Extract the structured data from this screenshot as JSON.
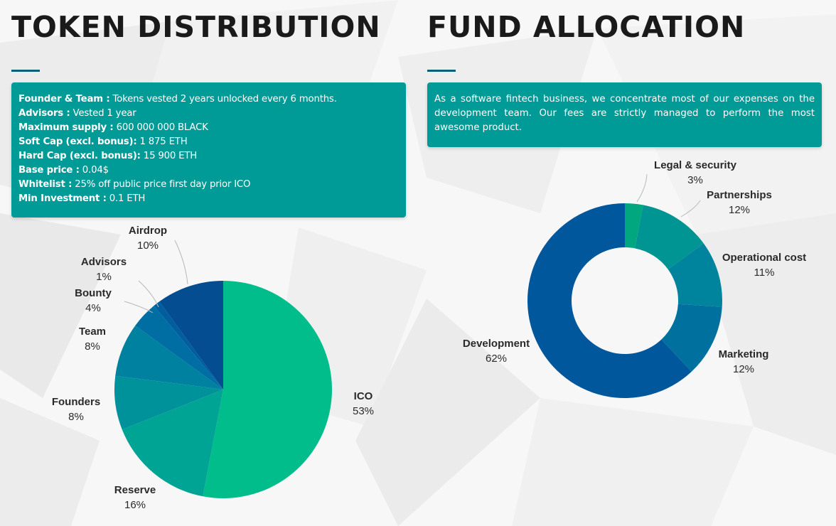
{
  "token_distribution": {
    "title": "TOKEN DISTRIBUTION",
    "info_lines": [
      {
        "key": "Founder & Team :",
        "value": " Tokens vested 2 years unlocked every 6 months."
      },
      {
        "key": "Advisors :",
        "value": " Vested 1 year"
      },
      {
        "key": "Maximum supply :",
        "value": " 600 000 000 BLACK"
      },
      {
        "key": "Soft Cap (excl. bonus):",
        "value": " 1 875 ETH"
      },
      {
        "key": "Hard Cap (excl. bonus):",
        "value": " 15 900 ETH"
      },
      {
        "key": "Base price :",
        "value": " 0.04$"
      },
      {
        "key": "Whitelist :",
        "value": " 25% off public price first day prior ICO"
      },
      {
        "key": "Min Investment :",
        "value": " 0.1 ETH"
      }
    ]
  },
  "fund_allocation": {
    "title": "FUND ALLOCATION",
    "description": "As a software fintech business, we concentrate most of our expenses on the development team. Our fees are strictly managed to perform the most awesome product."
  },
  "colors": {
    "teal_box": "#009a97",
    "underline": "#0b5f76"
  },
  "chart_data": [
    {
      "type": "pie",
      "title": "",
      "slices": [
        {
          "label": "ICO",
          "value": 53,
          "pct_label": "53%",
          "color": "#00bd8b"
        },
        {
          "label": "Reserve",
          "value": 16,
          "pct_label": "16%",
          "color": "#00a494"
        },
        {
          "label": "Founders",
          "value": 8,
          "pct_label": "8%",
          "color": "#00929a"
        },
        {
          "label": "Team",
          "value": 8,
          "pct_label": "8%",
          "color": "#0081a0"
        },
        {
          "label": "Bounty",
          "value": 4,
          "pct_label": "4%",
          "color": "#006ea3"
        },
        {
          "label": "Advisors",
          "value": 1,
          "pct_label": "1%",
          "color": "#005e9f"
        },
        {
          "label": "Airdrop",
          "value": 10,
          "pct_label": "10%",
          "color": "#044d91"
        }
      ]
    },
    {
      "type": "pie",
      "subtype": "donut",
      "title": "",
      "slices": [
        {
          "label": "Legal & security",
          "value": 3,
          "pct_label": "3%",
          "color": "#00a77f"
        },
        {
          "label": "Partnerships",
          "value": 12,
          "pct_label": "12%",
          "color": "#009592"
        },
        {
          "label": "Operational cost",
          "value": 11,
          "pct_label": "11%",
          "color": "#00849d"
        },
        {
          "label": "Marketing",
          "value": 12,
          "pct_label": "12%",
          "color": "#00719f"
        },
        {
          "label": "Development",
          "value": 62,
          "pct_label": "62%",
          "color": "#00579b"
        }
      ]
    }
  ]
}
